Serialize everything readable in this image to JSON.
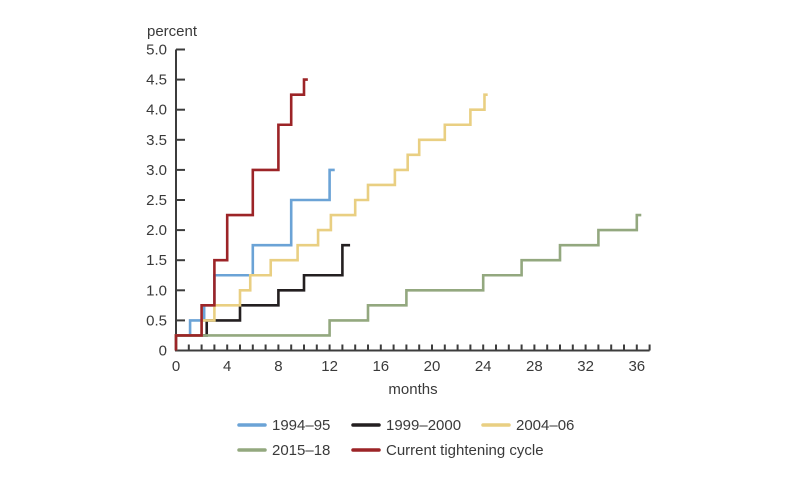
{
  "chart_data": {
    "type": "line",
    "subtype": "step-cumulative",
    "title": "",
    "ylabel": "percent",
    "xlabel": "months",
    "xlim": [
      0,
      37
    ],
    "ylim": [
      0,
      5.0
    ],
    "grid": false,
    "legend_position": "bottom",
    "x_tick_labels": [
      0,
      4,
      8,
      12,
      16,
      20,
      24,
      28,
      32,
      36
    ],
    "x_minor_tick_interval": 1,
    "x_axis_end_month": 37,
    "y_tick_values": [
      0,
      0.5,
      1.0,
      1.5,
      2.0,
      2.5,
      3.0,
      3.5,
      4.0,
      4.5,
      5.0
    ],
    "y_tick_labels": [
      "0",
      "0.5",
      "1.0",
      "1.5",
      "2.0",
      "2.5",
      "3.0",
      "3.5",
      "4.0",
      "4.5",
      "5.0"
    ],
    "axis_color": "#3c3c3c",
    "series": [
      {
        "name": "1994–95",
        "color": "#6ba3d6",
        "steps": [
          [
            0,
            0.25
          ],
          [
            1.1,
            0.5
          ],
          [
            2.2,
            0.75
          ],
          [
            3,
            1.25
          ],
          [
            6,
            1.75
          ],
          [
            9,
            2.5
          ],
          [
            12,
            3.0
          ]
        ],
        "end_month": 12.4
      },
      {
        "name": "1999–2000",
        "color": "#231f20",
        "steps": [
          [
            0,
            0.25
          ],
          [
            2.4,
            0.5
          ],
          [
            5,
            0.75
          ],
          [
            8,
            1.0
          ],
          [
            10,
            1.25
          ],
          [
            13,
            1.75
          ]
        ],
        "end_month": 13.6
      },
      {
        "name": "2004–06",
        "color": "#e9cf82",
        "steps": [
          [
            0,
            0.25
          ],
          [
            2,
            0.5
          ],
          [
            3,
            0.75
          ],
          [
            5,
            1.0
          ],
          [
            5.8,
            1.25
          ],
          [
            7.4,
            1.5
          ],
          [
            9.5,
            1.75
          ],
          [
            11.1,
            2.0
          ],
          [
            12.1,
            2.25
          ],
          [
            14,
            2.5
          ],
          [
            15,
            2.75
          ],
          [
            17.1,
            3.0
          ],
          [
            18.1,
            3.25
          ],
          [
            19,
            3.5
          ],
          [
            21,
            3.75
          ],
          [
            23,
            4.0
          ],
          [
            24.1,
            4.25
          ]
        ],
        "end_month": 24.35
      },
      {
        "name": "2015–18",
        "color": "#93a87f",
        "steps": [
          [
            0,
            0.25
          ],
          [
            12,
            0.5
          ],
          [
            15,
            0.75
          ],
          [
            18,
            1.0
          ],
          [
            24,
            1.25
          ],
          [
            27,
            1.5
          ],
          [
            30,
            1.75
          ],
          [
            33,
            2.0
          ],
          [
            36,
            2.25
          ]
        ],
        "end_month": 36.35
      },
      {
        "name": "Current tightening cycle",
        "color": "#9c2427",
        "steps": [
          [
            0,
            0.25
          ],
          [
            2,
            0.75
          ],
          [
            3,
            1.5
          ],
          [
            4,
            2.25
          ],
          [
            6,
            3.0
          ],
          [
            8,
            3.75
          ],
          [
            9,
            4.25
          ],
          [
            10,
            4.5
          ]
        ],
        "end_month": 10.3
      }
    ],
    "legend_rows": [
      [
        "1994–95",
        "1999–2000",
        "2004–06"
      ],
      [
        "2015–18",
        "Current tightening cycle"
      ]
    ]
  }
}
